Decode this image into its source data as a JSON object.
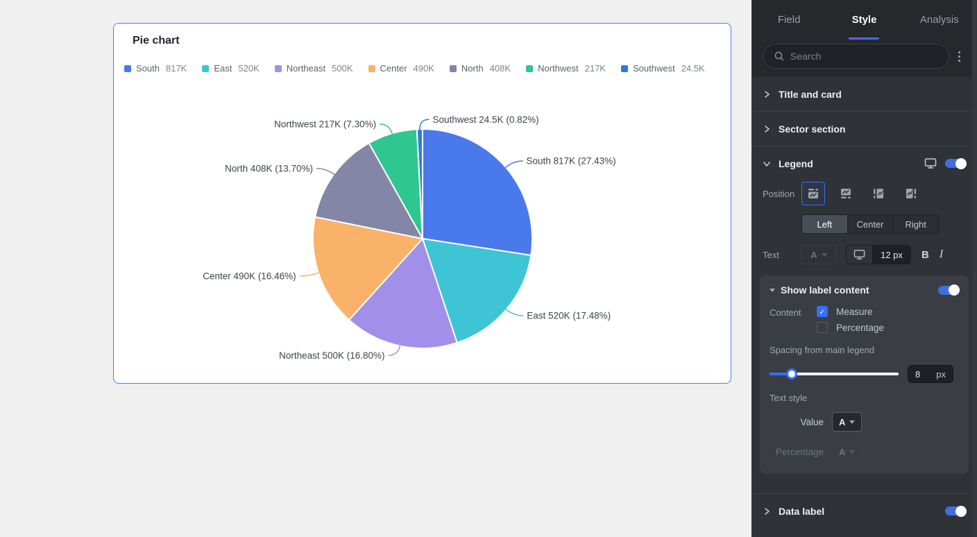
{
  "card": {
    "title": "Pie chart"
  },
  "chart_data": {
    "type": "pie",
    "title": "Pie chart",
    "legend_position": "top-left",
    "label_format": "{name} {value} ({pct}%)",
    "slices": [
      {
        "name": "South",
        "value": 817000,
        "value_label": "817K",
        "pct": 27.43,
        "color": "#4A79EC"
      },
      {
        "name": "East",
        "value": 520000,
        "value_label": "520K",
        "pct": 17.48,
        "color": "#3EC4D5"
      },
      {
        "name": "Northeast",
        "value": 500000,
        "value_label": "500K",
        "pct": 16.8,
        "color": "#A28FE9"
      },
      {
        "name": "Center",
        "value": 490000,
        "value_label": "490K",
        "pct": 16.46,
        "color": "#FAB16A"
      },
      {
        "name": "North",
        "value": 408000,
        "value_label": "408K",
        "pct": 13.7,
        "color": "#8486A7"
      },
      {
        "name": "Northwest",
        "value": 217000,
        "value_label": "217K",
        "pct": 7.3,
        "color": "#2EC78F"
      },
      {
        "name": "Southwest",
        "value": 24500,
        "value_label": "24.5K",
        "pct": 0.82,
        "color": "#2C7CD6"
      }
    ]
  },
  "panel": {
    "accent_color": "#3370FF",
    "tabs": [
      {
        "label": "Field",
        "active": false
      },
      {
        "label": "Style",
        "active": true
      },
      {
        "label": "Analysis",
        "active": false
      }
    ],
    "search": {
      "placeholder": "Search"
    },
    "section_title_card": "Title and card",
    "section_sector": "Sector section",
    "legend_section": {
      "title": "Legend",
      "enabled": true,
      "position_label": "Position",
      "position_selected": "top",
      "alignment": {
        "options": [
          "Left",
          "Center",
          "Right"
        ],
        "selected": "Left"
      },
      "text_label": "Text",
      "text_color_letter": "A",
      "font_size_value": "12 px",
      "bold_label": "B",
      "italic_label": "I",
      "show_label_content": {
        "title": "Show label content",
        "enabled": true,
        "content_label": "Content",
        "measure": {
          "label": "Measure",
          "checked": true
        },
        "percentage": {
          "label": "Percentage",
          "checked": false
        },
        "spacing_label": "Spacing from main legend",
        "spacing_value": "8",
        "spacing_unit": "px",
        "text_style_label": "Text style",
        "value_row_label": "Value",
        "percentage_row_label": "Percentage",
        "dropdown_letter": "A"
      }
    },
    "data_label_section": {
      "title": "Data label",
      "enabled": true
    }
  }
}
